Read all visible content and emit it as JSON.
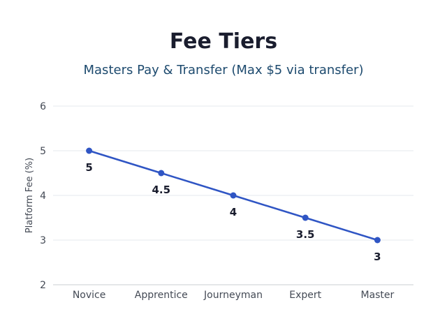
{
  "chart_data": {
    "type": "line",
    "title": "Fee Tiers",
    "subtitle": "Masters Pay & Transfer (Max $5 via transfer)",
    "xlabel": "",
    "ylabel": "Platform Fee (%)",
    "categories": [
      "Novice",
      "Apprentice",
      "Journeyman",
      "Expert",
      "Master"
    ],
    "series": [
      {
        "values": [
          5,
          4.5,
          4,
          3.5,
          3
        ],
        "labels": [
          "5",
          "4.5",
          "4",
          "3.5",
          "3"
        ]
      }
    ],
    "ylim": [
      2,
      6
    ],
    "yticks": [
      2,
      3,
      4,
      5,
      6
    ],
    "grid": true,
    "line_color": "#2f55c4"
  }
}
